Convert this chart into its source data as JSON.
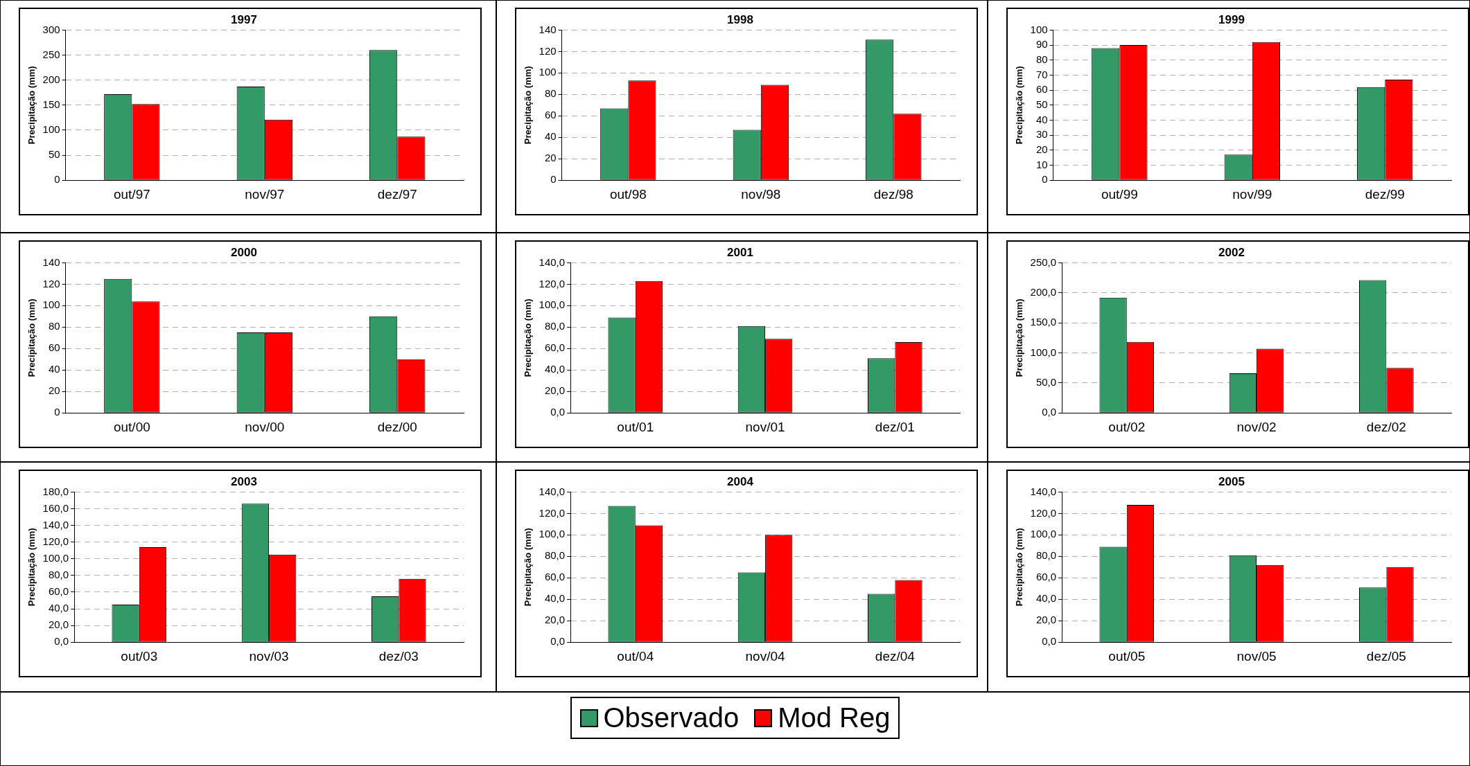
{
  "chart_data": [
    {
      "type": "bar",
      "title": "1997",
      "ylabel": "Precipitação (mm)",
      "categories": [
        "out/97",
        "nov/97",
        "dez/97"
      ],
      "ylim": [
        0,
        300
      ],
      "yticks": [
        0,
        50,
        100,
        150,
        200,
        250,
        300
      ],
      "grid": "y",
      "legend": "bottom",
      "series": [
        {
          "name": "Observado",
          "color": "#339966",
          "values": [
            172,
            187,
            260
          ]
        },
        {
          "name": "Mod Reg",
          "color": "#ff0000",
          "values": [
            152,
            121,
            87
          ]
        }
      ]
    },
    {
      "type": "bar",
      "title": "1998",
      "ylabel": "Precipitação (mm)",
      "categories": [
        "out/98",
        "nov/98",
        "dez/98"
      ],
      "ylim": [
        0,
        140
      ],
      "yticks": [
        0,
        20,
        40,
        60,
        80,
        100,
        120,
        140
      ],
      "grid": "y",
      "series": [
        {
          "color": "#339966",
          "values": [
            67,
            47,
            131
          ]
        },
        {
          "color": "#ff0000",
          "values": [
            93,
            89,
            62
          ]
        }
      ]
    },
    {
      "type": "bar",
      "title": "1999",
      "ylabel": "Precipitação (mm)",
      "categories": [
        "out/99",
        "nov/99",
        "dez/99"
      ],
      "ylim": [
        0,
        100
      ],
      "yticks": [
        0,
        10,
        20,
        30,
        40,
        50,
        60,
        70,
        80,
        90,
        100
      ],
      "grid": "y",
      "series": [
        {
          "color": "#339966",
          "values": [
            88,
            17,
            62
          ]
        },
        {
          "color": "#ff0000",
          "values": [
            90,
            92,
            67
          ]
        }
      ]
    },
    {
      "type": "bar",
      "title": "2000",
      "ylabel": "Precipitação (mm)",
      "categories": [
        "out/00",
        "nov/00",
        "dez/00"
      ],
      "ylim": [
        0,
        140
      ],
      "yticks": [
        0,
        20,
        40,
        60,
        80,
        100,
        120,
        140
      ],
      "grid": "y",
      "series": [
        {
          "color": "#339966",
          "values": [
            125,
            75,
            90
          ]
        },
        {
          "color": "#ff0000",
          "values": [
            104,
            75,
            50
          ]
        }
      ]
    },
    {
      "type": "bar",
      "title": "2001",
      "ylabel": "Precipitação (mm)",
      "categories": [
        "out/01",
        "nov/01",
        "dez/01"
      ],
      "ylim": [
        0,
        140
      ],
      "yticks": [
        {
          "value": 0,
          "label": "0,0"
        },
        {
          "value": 20,
          "label": "20,0"
        },
        {
          "value": 40,
          "label": "40,0"
        },
        {
          "value": 60,
          "label": "60,0"
        },
        {
          "value": 80,
          "label": "80,0"
        },
        {
          "value": 100,
          "label": "100,0"
        },
        {
          "value": 120,
          "label": "120,0"
        },
        {
          "value": 140,
          "label": "140,0"
        }
      ],
      "grid": "y",
      "series": [
        {
          "color": "#339966",
          "values": [
            89,
            81,
            51
          ]
        },
        {
          "color": "#ff0000",
          "values": [
            123,
            69,
            66
          ]
        }
      ]
    },
    {
      "type": "bar",
      "title": "2002",
      "ylabel": "Precipitação (mm)",
      "categories": [
        "out/02",
        "nov/02",
        "dez/02"
      ],
      "ylim": [
        0,
        250
      ],
      "yticks": [
        {
          "value": 0,
          "label": "0,0"
        },
        {
          "value": 50,
          "label": "50,0"
        },
        {
          "value": 100,
          "label": "100,0"
        },
        {
          "value": 150,
          "label": "150,0"
        },
        {
          "value": 200,
          "label": "200,0"
        },
        {
          "value": 250,
          "label": "250,0"
        }
      ],
      "grid": "y",
      "series": [
        {
          "color": "#339966",
          "values": [
            192,
            66,
            221
          ]
        },
        {
          "color": "#ff0000",
          "values": [
            118,
            107,
            75
          ]
        }
      ]
    },
    {
      "type": "bar",
      "title": "2003",
      "ylabel": "Precipitação (mm)",
      "categories": [
        "out/03",
        "nov/03",
        "dez/03"
      ],
      "ylim": [
        0,
        180
      ],
      "yticks": [
        {
          "value": 0,
          "label": "0,0"
        },
        {
          "value": 20,
          "label": "20,0"
        },
        {
          "value": 40,
          "label": "40,0"
        },
        {
          "value": 60,
          "label": "60,0"
        },
        {
          "value": 80,
          "label": "80,0"
        },
        {
          "value": 100,
          "label": "100,0"
        },
        {
          "value": 120,
          "label": "120,0"
        },
        {
          "value": 140,
          "label": "140,0"
        },
        {
          "value": 160,
          "label": "160,0"
        },
        {
          "value": 180,
          "label": "180,0"
        }
      ],
      "grid": "y",
      "series": [
        {
          "color": "#339966",
          "values": [
            45,
            166,
            55
          ]
        },
        {
          "color": "#ff0000",
          "values": [
            114,
            105,
            76
          ]
        }
      ]
    },
    {
      "type": "bar",
      "title": "2004",
      "ylabel": "Precipitação (mm)",
      "categories": [
        "out/04",
        "nov/04",
        "dez/04"
      ],
      "ylim": [
        0,
        140
      ],
      "yticks": [
        {
          "value": 0,
          "label": "0,0"
        },
        {
          "value": 20,
          "label": "20,0"
        },
        {
          "value": 40,
          "label": "40,0"
        },
        {
          "value": 60,
          "label": "60,0"
        },
        {
          "value": 80,
          "label": "80,0"
        },
        {
          "value": 100,
          "label": "100,0"
        },
        {
          "value": 120,
          "label": "120,0"
        },
        {
          "value": 140,
          "label": "140,0"
        }
      ],
      "grid": "y",
      "series": [
        {
          "color": "#339966",
          "values": [
            127,
            65,
            45
          ]
        },
        {
          "color": "#ff0000",
          "values": [
            109,
            100,
            58
          ]
        }
      ]
    },
    {
      "type": "bar",
      "title": "2005",
      "ylabel": "Precipitação (mm)",
      "categories": [
        "out/05",
        "nov/05",
        "dez/05"
      ],
      "ylim": [
        0,
        140
      ],
      "yticks": [
        {
          "value": 0,
          "label": "0,0"
        },
        {
          "value": 20,
          "label": "20,0"
        },
        {
          "value": 40,
          "label": "40,0"
        },
        {
          "value": 60,
          "label": "60,0"
        },
        {
          "value": 80,
          "label": "80,0"
        },
        {
          "value": 100,
          "label": "100,0"
        },
        {
          "value": 120,
          "label": "120,0"
        },
        {
          "value": 140,
          "label": "140,0"
        }
      ],
      "grid": "y",
      "series": [
        {
          "color": "#339966",
          "values": [
            89,
            81,
            51
          ]
        },
        {
          "color": "#ff0000",
          "values": [
            128,
            72,
            70
          ]
        }
      ]
    }
  ]
}
